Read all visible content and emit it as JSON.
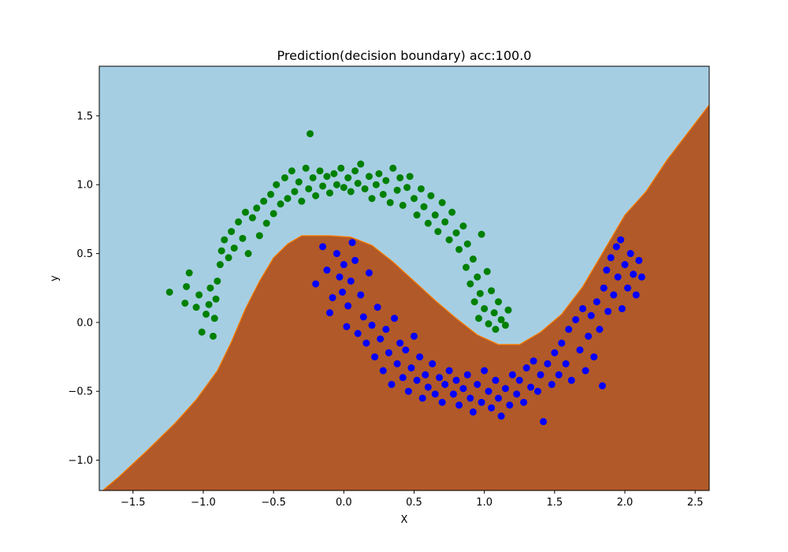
{
  "chart_data": {
    "type": "scatter",
    "title": "Prediction(decision boundary) acc:100.0",
    "xlabel": "X",
    "ylabel": "y",
    "xlim": [
      -1.74,
      2.6
    ],
    "ylim": [
      -1.22,
      1.86
    ],
    "xticks": [
      -1.5,
      -1.0,
      -0.5,
      0.0,
      0.5,
      1.0,
      1.5,
      2.0,
      2.5
    ],
    "xtick_labels": [
      "−1.5",
      "−1.0",
      "−0.5",
      "0.0",
      "0.5",
      "1.0",
      "1.5",
      "2.0",
      "2.5"
    ],
    "yticks": [
      -1.0,
      -0.5,
      0.0,
      0.5,
      1.0,
      1.5
    ],
    "ytick_labels": [
      "−1.0",
      "−0.5",
      "0.0",
      "0.5",
      "1.0",
      "1.5"
    ],
    "grid": false,
    "colors": {
      "region_class0": "#a6cee3",
      "region_class1": "#b15928",
      "boundary": "#ff7f00",
      "class0_points": "#008000",
      "class1_points": "#0000ff"
    },
    "decision_boundary": [
      [
        -1.74,
        -1.24
      ],
      [
        -1.6,
        -1.12
      ],
      [
        -1.4,
        -0.93
      ],
      [
        -1.2,
        -0.73
      ],
      [
        -1.05,
        -0.56
      ],
      [
        -0.9,
        -0.35
      ],
      [
        -0.8,
        -0.14
      ],
      [
        -0.7,
        0.1
      ],
      [
        -0.6,
        0.3
      ],
      [
        -0.5,
        0.47
      ],
      [
        -0.4,
        0.57
      ],
      [
        -0.3,
        0.63
      ],
      [
        -0.1,
        0.63
      ],
      [
        0.05,
        0.62
      ],
      [
        0.2,
        0.56
      ],
      [
        0.35,
        0.44
      ],
      [
        0.5,
        0.3
      ],
      [
        0.65,
        0.16
      ],
      [
        0.8,
        0.03
      ],
      [
        0.95,
        -0.09
      ],
      [
        1.1,
        -0.16
      ],
      [
        1.25,
        -0.16
      ],
      [
        1.4,
        -0.07
      ],
      [
        1.55,
        0.06
      ],
      [
        1.7,
        0.26
      ],
      [
        1.85,
        0.52
      ],
      [
        2.0,
        0.78
      ],
      [
        2.15,
        0.95
      ],
      [
        2.3,
        1.18
      ],
      [
        2.45,
        1.38
      ],
      [
        2.6,
        1.58
      ]
    ],
    "series": [
      {
        "class": 0,
        "color": "green",
        "points": [
          [
            -1.24,
            0.22
          ],
          [
            -1.13,
            0.14
          ],
          [
            -1.12,
            0.26
          ],
          [
            -1.1,
            0.36
          ],
          [
            -1.05,
            0.11
          ],
          [
            -1.03,
            0.2
          ],
          [
            -1.01,
            -0.07
          ],
          [
            -0.98,
            0.06
          ],
          [
            -0.96,
            0.13
          ],
          [
            -0.95,
            0.25
          ],
          [
            -0.93,
            -0.1
          ],
          [
            -0.92,
            0.03
          ],
          [
            -0.91,
            0.17
          ],
          [
            -0.9,
            0.3
          ],
          [
            -0.88,
            0.42
          ],
          [
            -0.87,
            0.52
          ],
          [
            -0.85,
            0.6
          ],
          [
            -0.82,
            0.47
          ],
          [
            -0.8,
            0.66
          ],
          [
            -0.78,
            0.54
          ],
          [
            -0.75,
            0.73
          ],
          [
            -0.72,
            0.61
          ],
          [
            -0.7,
            0.8
          ],
          [
            -0.68,
            0.5
          ],
          [
            -0.65,
            0.76
          ],
          [
            -0.62,
            0.83
          ],
          [
            -0.6,
            0.63
          ],
          [
            -0.57,
            0.88
          ],
          [
            -0.55,
            0.72
          ],
          [
            -0.52,
            0.93
          ],
          [
            -0.5,
            0.79
          ],
          [
            -0.48,
            1.0
          ],
          [
            -0.45,
            0.86
          ],
          [
            -0.42,
            1.05
          ],
          [
            -0.4,
            0.9
          ],
          [
            -0.37,
            1.1
          ],
          [
            -0.35,
            0.95
          ],
          [
            -0.32,
            1.02
          ],
          [
            -0.3,
            0.88
          ],
          [
            -0.27,
            1.12
          ],
          [
            -0.25,
            0.97
          ],
          [
            -0.24,
            1.37
          ],
          [
            -0.22,
            1.05
          ],
          [
            -0.2,
            0.92
          ],
          [
            -0.17,
            1.1
          ],
          [
            -0.15,
            0.99
          ],
          [
            -0.12,
            1.06
          ],
          [
            -0.1,
            0.94
          ],
          [
            -0.07,
            1.08
          ],
          [
            -0.05,
            1.0
          ],
          [
            -0.02,
            1.12
          ],
          [
            0.0,
            0.98
          ],
          [
            0.03,
            1.05
          ],
          [
            0.05,
            0.95
          ],
          [
            0.08,
            1.1
          ],
          [
            0.1,
            1.01
          ],
          [
            0.12,
            1.15
          ],
          [
            0.15,
            0.97
          ],
          [
            0.18,
            1.06
          ],
          [
            0.2,
            0.9
          ],
          [
            0.23,
            1.0
          ],
          [
            0.25,
            1.08
          ],
          [
            0.28,
            0.93
          ],
          [
            0.3,
            1.03
          ],
          [
            0.33,
            0.87
          ],
          [
            0.35,
            1.12
          ],
          [
            0.38,
            0.96
          ],
          [
            0.4,
            1.05
          ],
          [
            0.42,
            0.85
          ],
          [
            0.45,
            0.98
          ],
          [
            0.47,
            1.06
          ],
          [
            0.5,
            0.9
          ],
          [
            0.52,
            0.78
          ],
          [
            0.55,
            0.97
          ],
          [
            0.57,
            0.84
          ],
          [
            0.6,
            0.72
          ],
          [
            0.62,
            0.92
          ],
          [
            0.65,
            0.78
          ],
          [
            0.67,
            0.66
          ],
          [
            0.7,
            0.87
          ],
          [
            0.72,
            0.73
          ],
          [
            0.75,
            0.6
          ],
          [
            0.77,
            0.8
          ],
          [
            0.8,
            0.65
          ],
          [
            0.82,
            0.53
          ],
          [
            0.85,
            0.7
          ],
          [
            0.87,
            0.4
          ],
          [
            0.88,
            0.57
          ],
          [
            0.9,
            0.28
          ],
          [
            0.92,
            0.46
          ],
          [
            0.93,
            0.15
          ],
          [
            0.95,
            0.33
          ],
          [
            0.96,
            0.03
          ],
          [
            0.97,
            0.21
          ],
          [
            0.98,
            0.64
          ],
          [
            1.0,
            0.1
          ],
          [
            1.02,
            0.37
          ],
          [
            1.03,
            -0.01
          ],
          [
            1.05,
            0.23
          ],
          [
            1.07,
            0.07
          ],
          [
            1.08,
            -0.05
          ],
          [
            1.1,
            0.15
          ],
          [
            1.12,
            0.02
          ],
          [
            1.15,
            -0.02
          ],
          [
            1.17,
            0.09
          ]
        ]
      },
      {
        "class": 1,
        "color": "blue",
        "points": [
          [
            -0.2,
            0.28
          ],
          [
            -0.15,
            0.55
          ],
          [
            -0.12,
            0.38
          ],
          [
            -0.1,
            0.07
          ],
          [
            -0.08,
            0.18
          ],
          [
            -0.05,
            0.5
          ],
          [
            -0.03,
            0.33
          ],
          [
            -0.01,
            0.22
          ],
          [
            0.0,
            0.42
          ],
          [
            0.02,
            -0.03
          ],
          [
            0.03,
            0.12
          ],
          [
            0.05,
            0.3
          ],
          [
            0.06,
            0.58
          ],
          [
            0.08,
            0.45
          ],
          [
            0.1,
            -0.08
          ],
          [
            0.12,
            0.2
          ],
          [
            0.14,
            0.04
          ],
          [
            0.16,
            -0.15
          ],
          [
            0.18,
            0.36
          ],
          [
            0.2,
            -0.02
          ],
          [
            0.22,
            -0.25
          ],
          [
            0.24,
            0.11
          ],
          [
            0.26,
            -0.12
          ],
          [
            0.28,
            -0.35
          ],
          [
            0.3,
            -0.05
          ],
          [
            0.32,
            -0.22
          ],
          [
            0.34,
            -0.45
          ],
          [
            0.36,
            0.03
          ],
          [
            0.38,
            -0.3
          ],
          [
            0.4,
            -0.15
          ],
          [
            0.42,
            -0.4
          ],
          [
            0.44,
            -0.2
          ],
          [
            0.46,
            -0.5
          ],
          [
            0.48,
            -0.33
          ],
          [
            0.5,
            -0.1
          ],
          [
            0.52,
            -0.42
          ],
          [
            0.54,
            -0.25
          ],
          [
            0.56,
            -0.55
          ],
          [
            0.58,
            -0.38
          ],
          [
            0.6,
            -0.47
          ],
          [
            0.63,
            -0.3
          ],
          [
            0.65,
            -0.52
          ],
          [
            0.68,
            -0.4
          ],
          [
            0.7,
            -0.58
          ],
          [
            0.72,
            -0.45
          ],
          [
            0.75,
            -0.35
          ],
          [
            0.78,
            -0.52
          ],
          [
            0.8,
            -0.42
          ],
          [
            0.82,
            -0.6
          ],
          [
            0.85,
            -0.48
          ],
          [
            0.88,
            -0.38
          ],
          [
            0.9,
            -0.55
          ],
          [
            0.92,
            -0.65
          ],
          [
            0.95,
            -0.45
          ],
          [
            0.98,
            -0.58
          ],
          [
            1.0,
            -0.35
          ],
          [
            1.03,
            -0.5
          ],
          [
            1.05,
            -0.62
          ],
          [
            1.08,
            -0.42
          ],
          [
            1.1,
            -0.55
          ],
          [
            1.12,
            -0.68
          ],
          [
            1.15,
            -0.48
          ],
          [
            1.18,
            -0.6
          ],
          [
            1.2,
            -0.38
          ],
          [
            1.23,
            -0.52
          ],
          [
            1.25,
            -0.42
          ],
          [
            1.28,
            -0.58
          ],
          [
            1.3,
            -0.33
          ],
          [
            1.33,
            -0.47
          ],
          [
            1.35,
            -0.28
          ],
          [
            1.38,
            -0.5
          ],
          [
            1.4,
            -0.38
          ],
          [
            1.42,
            -0.72
          ],
          [
            1.45,
            -0.3
          ],
          [
            1.48,
            -0.45
          ],
          [
            1.5,
            -0.22
          ],
          [
            1.53,
            -0.38
          ],
          [
            1.55,
            -0.15
          ],
          [
            1.58,
            -0.3
          ],
          [
            1.6,
            -0.05
          ],
          [
            1.62,
            -0.42
          ],
          [
            1.65,
            0.02
          ],
          [
            1.68,
            -0.2
          ],
          [
            1.7,
            0.1
          ],
          [
            1.72,
            -0.35
          ],
          [
            1.74,
            -0.1
          ],
          [
            1.76,
            0.05
          ],
          [
            1.78,
            -0.25
          ],
          [
            1.8,
            0.15
          ],
          [
            1.82,
            -0.05
          ],
          [
            1.84,
            -0.46
          ],
          [
            1.85,
            0.25
          ],
          [
            1.87,
            0.38
          ],
          [
            1.88,
            0.08
          ],
          [
            1.9,
            0.47
          ],
          [
            1.92,
            0.2
          ],
          [
            1.94,
            0.55
          ],
          [
            1.95,
            0.33
          ],
          [
            1.97,
            0.6
          ],
          [
            1.98,
            0.1
          ],
          [
            2.0,
            0.42
          ],
          [
            2.02,
            0.25
          ],
          [
            2.04,
            0.5
          ],
          [
            2.06,
            0.35
          ],
          [
            2.08,
            0.2
          ],
          [
            2.1,
            0.45
          ],
          [
            2.12,
            0.33
          ]
        ]
      }
    ]
  }
}
